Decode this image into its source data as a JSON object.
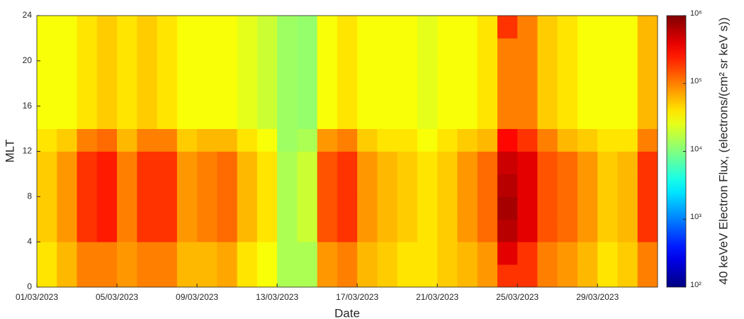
{
  "chart_data": {
    "type": "heatmap",
    "x_label": "Date",
    "y_label": "MLT",
    "colorbar_label": "40 keVeV Electron Flux, (electrons/(cm² sr keV s))",
    "colormap": "jet",
    "log_color": true,
    "categories": [
      "01/03/2023",
      null,
      null,
      null,
      "05/03/2023",
      null,
      null,
      null,
      "09/03/2023",
      null,
      null,
      null,
      "13/03/2023",
      null,
      null,
      null,
      "17/03/2023",
      null,
      null,
      null,
      "21/03/2023",
      null,
      null,
      null,
      "25/03/2023",
      null,
      null,
      null,
      "29/03/2023",
      null,
      null
    ],
    "ybins": [
      0,
      2,
      4,
      6,
      8,
      10,
      12,
      14,
      16,
      18,
      20,
      22,
      24
    ],
    "ylim": [
      0,
      24
    ],
    "yticks": [
      0,
      4,
      8,
      12,
      16,
      20,
      24
    ],
    "clim": [
      100,
      1000000
    ],
    "cticks": [
      {
        "value": 100,
        "label": "10²"
      },
      {
        "value": 1000,
        "label": "10³"
      },
      {
        "value": 10000,
        "label": "10⁴"
      },
      {
        "value": 100000,
        "label": "10⁵"
      },
      {
        "value": 1000000,
        "label": "10⁶"
      }
    ],
    "z": [
      [
        40000.0,
        60000.0,
        100000.0,
        100000.0,
        80000.0,
        100000.0,
        100000.0,
        60000.0,
        60000.0,
        70000.0,
        40000.0,
        30000.0,
        15000.0,
        15000.0,
        80000.0,
        100000.0,
        60000.0,
        50000.0,
        40000.0,
        40000.0,
        50000.0,
        60000.0,
        80000.0,
        200000.0,
        200000.0,
        100000.0,
        80000.0,
        60000.0,
        40000.0,
        50000.0,
        100000.0
      ],
      [
        40000.0,
        60000.0,
        100000.0,
        100000.0,
        80000.0,
        100000.0,
        100000.0,
        60000.0,
        60000.0,
        70000.0,
        40000.0,
        30000.0,
        15000.0,
        15000.0,
        80000.0,
        100000.0,
        60000.0,
        50000.0,
        40000.0,
        40000.0,
        50000.0,
        60000.0,
        80000.0,
        400000.0,
        200000.0,
        100000.0,
        80000.0,
        60000.0,
        40000.0,
        50000.0,
        100000.0
      ],
      [
        50000.0,
        80000.0,
        200000.0,
        250000.0,
        100000.0,
        200000.0,
        200000.0,
        80000.0,
        100000.0,
        120000.0,
        60000.0,
        40000.0,
        15000.0,
        20000.0,
        150000.0,
        200000.0,
        80000.0,
        60000.0,
        50000.0,
        40000.0,
        50000.0,
        80000.0,
        120000.0,
        600000.0,
        400000.0,
        150000.0,
        120000.0,
        80000.0,
        50000.0,
        60000.0,
        200000.0
      ],
      [
        50000.0,
        80000.0,
        200000.0,
        250000.0,
        100000.0,
        200000.0,
        200000.0,
        80000.0,
        100000.0,
        120000.0,
        60000.0,
        40000.0,
        15000.0,
        20000.0,
        150000.0,
        200000.0,
        80000.0,
        60000.0,
        50000.0,
        40000.0,
        50000.0,
        80000.0,
        120000.0,
        700000.0,
        400000.0,
        150000.0,
        120000.0,
        80000.0,
        50000.0,
        60000.0,
        200000.0
      ],
      [
        50000.0,
        80000.0,
        200000.0,
        250000.0,
        100000.0,
        200000.0,
        200000.0,
        80000.0,
        100000.0,
        120000.0,
        60000.0,
        40000.0,
        15000.0,
        20000.0,
        150000.0,
        200000.0,
        80000.0,
        60000.0,
        50000.0,
        40000.0,
        50000.0,
        80000.0,
        120000.0,
        600000.0,
        400000.0,
        150000.0,
        120000.0,
        80000.0,
        50000.0,
        60000.0,
        200000.0
      ],
      [
        50000.0,
        80000.0,
        200000.0,
        250000.0,
        100000.0,
        200000.0,
        200000.0,
        80000.0,
        100000.0,
        120000.0,
        60000.0,
        40000.0,
        15000.0,
        20000.0,
        150000.0,
        200000.0,
        80000.0,
        60000.0,
        50000.0,
        40000.0,
        50000.0,
        80000.0,
        120000.0,
        500000.0,
        400000.0,
        150000.0,
        120000.0,
        80000.0,
        50000.0,
        60000.0,
        200000.0
      ],
      [
        40000.0,
        50000.0,
        100000.0,
        120000.0,
        60000.0,
        100000.0,
        100000.0,
        50000.0,
        60000.0,
        60000.0,
        40000.0,
        30000.0,
        13000.0,
        15000.0,
        80000.0,
        100000.0,
        50000.0,
        40000.0,
        40000.0,
        30000.0,
        40000.0,
        50000.0,
        60000.0,
        300000.0,
        200000.0,
        100000.0,
        60000.0,
        50000.0,
        40000.0,
        40000.0,
        100000.0
      ],
      [
        30000.0,
        30000.0,
        40000.0,
        50000.0,
        40000.0,
        50000.0,
        40000.0,
        30000.0,
        30000.0,
        30000.0,
        25000.0,
        20000.0,
        13000.0,
        12000.0,
        30000.0,
        40000.0,
        30000.0,
        30000.0,
        30000.0,
        25000.0,
        30000.0,
        30000.0,
        40000.0,
        100000.0,
        100000.0,
        50000.0,
        40000.0,
        30000.0,
        30000.0,
        30000.0,
        60000.0
      ],
      [
        30000.0,
        30000.0,
        40000.0,
        50000.0,
        40000.0,
        50000.0,
        40000.0,
        30000.0,
        30000.0,
        30000.0,
        25000.0,
        20000.0,
        13000.0,
        12000.0,
        30000.0,
        40000.0,
        30000.0,
        30000.0,
        30000.0,
        25000.0,
        30000.0,
        30000.0,
        40000.0,
        100000.0,
        100000.0,
        50000.0,
        40000.0,
        30000.0,
        30000.0,
        30000.0,
        60000.0
      ],
      [
        30000.0,
        30000.0,
        40000.0,
        50000.0,
        40000.0,
        50000.0,
        40000.0,
        30000.0,
        30000.0,
        30000.0,
        25000.0,
        20000.0,
        13000.0,
        12000.0,
        30000.0,
        40000.0,
        30000.0,
        30000.0,
        30000.0,
        25000.0,
        30000.0,
        30000.0,
        40000.0,
        100000.0,
        100000.0,
        50000.0,
        40000.0,
        30000.0,
        30000.0,
        30000.0,
        60000.0
      ],
      [
        30000.0,
        30000.0,
        40000.0,
        50000.0,
        40000.0,
        50000.0,
        40000.0,
        30000.0,
        30000.0,
        30000.0,
        25000.0,
        20000.0,
        13000.0,
        12000.0,
        30000.0,
        40000.0,
        30000.0,
        30000.0,
        30000.0,
        25000.0,
        30000.0,
        30000.0,
        40000.0,
        100000.0,
        100000.0,
        50000.0,
        40000.0,
        30000.0,
        30000.0,
        30000.0,
        60000.0
      ],
      [
        30000.0,
        30000.0,
        40000.0,
        50000.0,
        40000.0,
        50000.0,
        40000.0,
        30000.0,
        30000.0,
        30000.0,
        25000.0,
        20000.0,
        13000.0,
        12000.0,
        30000.0,
        40000.0,
        30000.0,
        30000.0,
        30000.0,
        25000.0,
        30000.0,
        30000.0,
        40000.0,
        200000.0,
        100000.0,
        50000.0,
        40000.0,
        30000.0,
        30000.0,
        30000.0,
        60000.0
      ]
    ]
  }
}
